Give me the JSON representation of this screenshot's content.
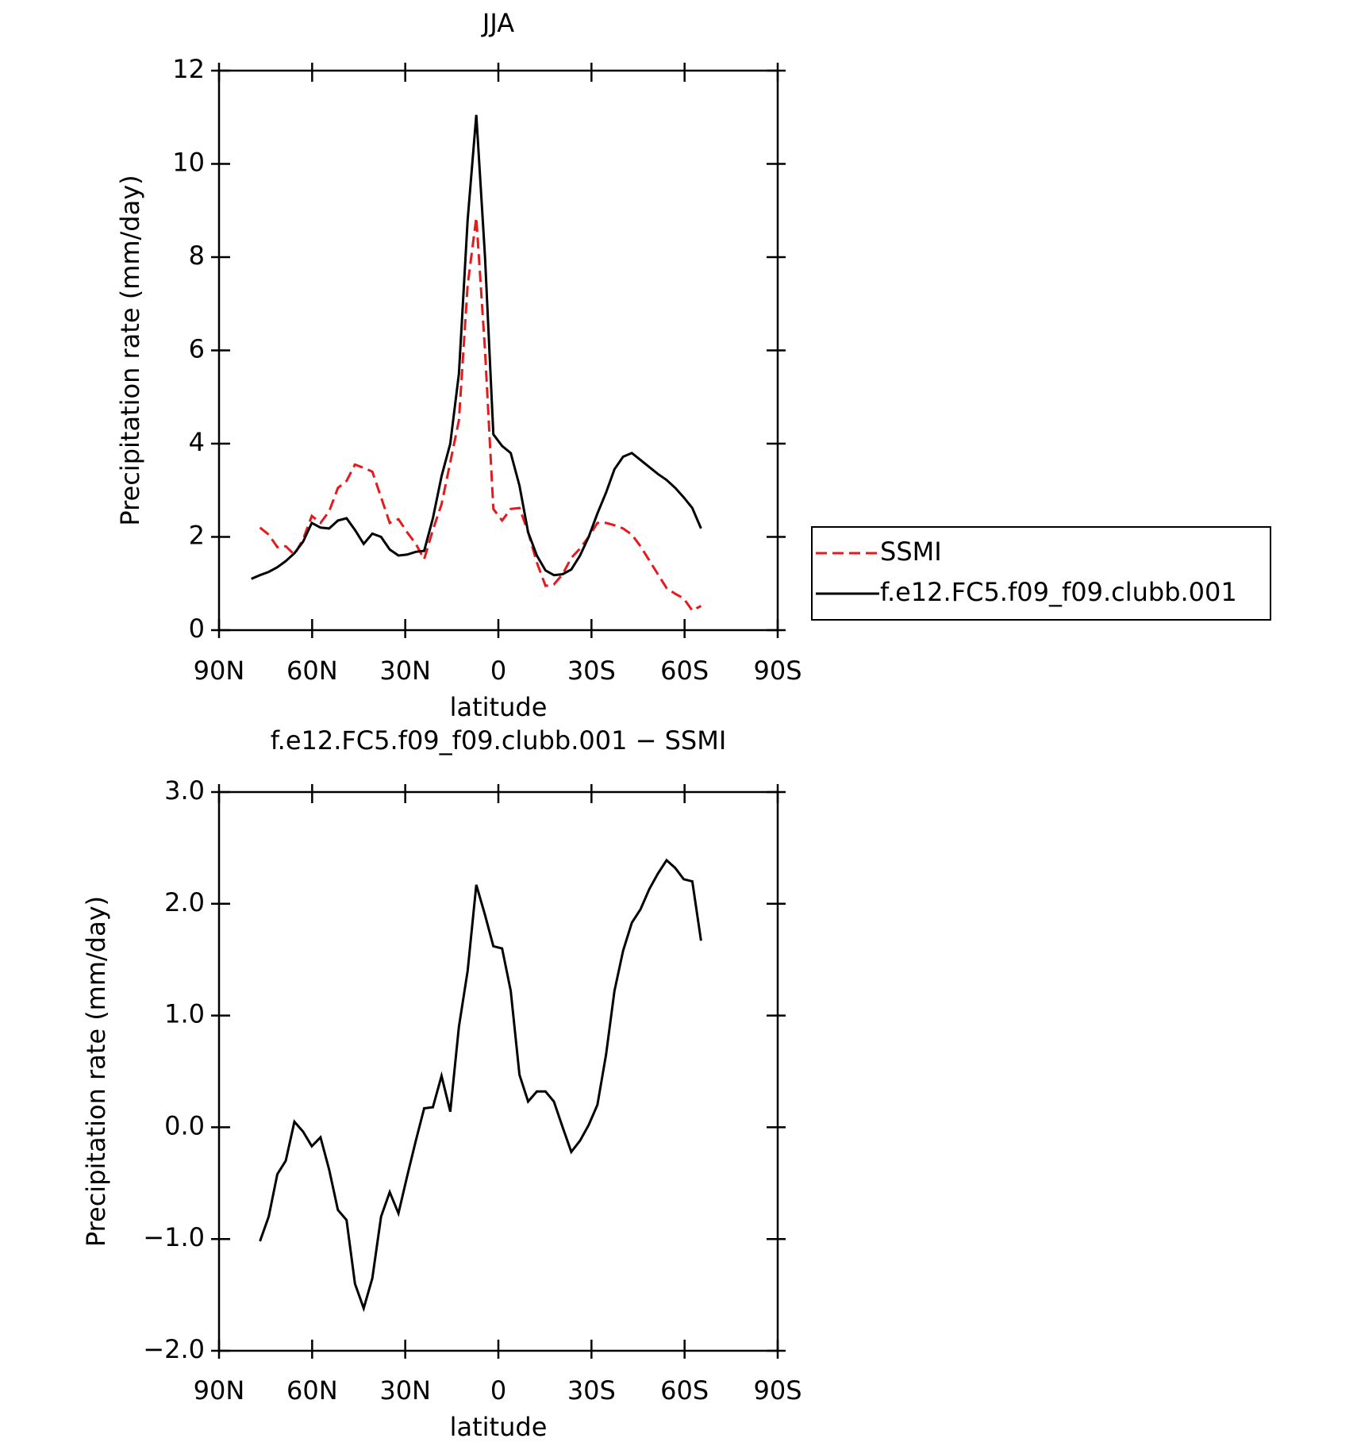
{
  "chart_data": [
    {
      "type": "line",
      "title": "JJA",
      "x_label": "latitude",
      "y_label": "Precipitation rate (mm/day)",
      "x": [
        79.6,
        76.8,
        74.0,
        71.2,
        68.5,
        65.7,
        62.9,
        60.1,
        57.3,
        54.5,
        51.7,
        48.9,
        46.2,
        43.4,
        40.6,
        37.8,
        35.0,
        32.2,
        29.4,
        26.6,
        23.9,
        21.1,
        18.3,
        15.5,
        12.7,
        9.9,
        7.1,
        4.3,
        1.6,
        -1.2,
        -4.0,
        -6.8,
        -9.6,
        -12.4,
        -15.2,
        -17.9,
        -20.7,
        -23.5,
        -26.3,
        -29.1,
        -31.9,
        -34.7,
        -37.4,
        -40.2,
        -43.0,
        -45.8,
        -48.6,
        -51.4,
        -54.2,
        -57.0,
        -59.7,
        -62.5,
        -65.3
      ],
      "series": [
        {
          "name": "SSMI",
          "color": "#e41a1c",
          "dash": true,
          "values": [
            null,
            2.2,
            2.05,
            1.78,
            1.8,
            1.62,
            1.95,
            2.45,
            2.3,
            2.55,
            3.05,
            3.2,
            3.55,
            3.48,
            3.4,
            2.85,
            2.3,
            2.38,
            2.1,
            1.85,
            1.52,
            2.15,
            2.7,
            3.6,
            4.5,
            7.4,
            8.85,
            6.0,
            2.6,
            2.35,
            2.6,
            2.62,
            2.1,
            1.45,
            0.95,
            0.98,
            1.2,
            1.55,
            1.75,
            2.0,
            2.3,
            2.3,
            2.25,
            2.18,
            2.05,
            1.8,
            1.5,
            1.2,
            0.9,
            0.78,
            0.68,
            0.42,
            0.52
          ]
        },
        {
          "name": "f.e12.FC5.f09_f09.clubb.001",
          "color": "#000000",
          "dash": false,
          "values": [
            1.1,
            1.18,
            1.25,
            1.35,
            1.48,
            1.65,
            1.9,
            2.3,
            2.2,
            2.18,
            2.35,
            2.4,
            2.15,
            1.85,
            2.07,
            2.0,
            1.73,
            1.6,
            1.62,
            1.68,
            1.7,
            2.4,
            3.3,
            4.0,
            5.5,
            8.8,
            11.05,
            8.0,
            4.2,
            3.95,
            3.8,
            3.1,
            2.1,
            1.6,
            1.28,
            1.18,
            1.2,
            1.3,
            1.6,
            2.0,
            2.5,
            2.95,
            3.45,
            3.72,
            3.8,
            3.65,
            3.5,
            3.35,
            3.22,
            3.05,
            2.85,
            2.62,
            2.18
          ]
        }
      ],
      "xlim": [
        90,
        -90
      ],
      "xticks": [
        {
          "value": 90,
          "label": "90N"
        },
        {
          "value": 60,
          "label": "60N"
        },
        {
          "value": 30,
          "label": "30N"
        },
        0,
        {
          "value": -30,
          "label": "30S"
        },
        {
          "value": -60,
          "label": "60S"
        },
        {
          "value": -90,
          "label": "90S"
        }
      ],
      "ylim": [
        0,
        12
      ],
      "yticks": [
        0,
        2,
        4,
        6,
        8,
        10,
        12
      ],
      "legend": "right"
    },
    {
      "type": "line",
      "title": "f.e12.FC5.f09_f09.clubb.001 − SSMI",
      "x_label": "latitude",
      "y_label": "Precipitation rate (mm/day)",
      "x": [
        79.6,
        76.8,
        74.0,
        71.2,
        68.5,
        65.7,
        62.9,
        60.1,
        57.3,
        54.5,
        51.7,
        48.9,
        46.2,
        43.4,
        40.6,
        37.8,
        35.0,
        32.2,
        29.4,
        26.6,
        23.9,
        21.1,
        18.3,
        15.5,
        12.7,
        9.9,
        7.1,
        4.3,
        1.6,
        -1.2,
        -4.0,
        -6.8,
        -9.6,
        -12.4,
        -15.2,
        -17.9,
        -20.7,
        -23.5,
        -26.3,
        -29.1,
        -31.9,
        -34.7,
        -37.4,
        -40.2,
        -43.0,
        -45.8,
        -48.6,
        -51.4,
        -54.2,
        -57.0,
        -59.7,
        -62.5,
        -65.3
      ],
      "series": [
        {
          "color": "#000000",
          "dash": false,
          "values": [
            null,
            -1.02,
            -0.8,
            -0.42,
            -0.3,
            0.05,
            -0.04,
            -0.17,
            -0.09,
            -0.38,
            -0.74,
            -0.83,
            -1.4,
            -1.62,
            -1.35,
            -0.8,
            -0.58,
            -0.77,
            -0.44,
            -0.12,
            0.17,
            0.18,
            0.46,
            0.14,
            0.9,
            1.4,
            2.17,
            1.9,
            1.62,
            1.6,
            1.22,
            0.47,
            0.23,
            0.32,
            0.32,
            0.23,
            0.0,
            -0.22,
            -0.12,
            0.02,
            0.2,
            0.65,
            1.22,
            1.58,
            1.83,
            1.95,
            2.13,
            2.27,
            2.39,
            2.32,
            2.22,
            2.2,
            1.67
          ]
        }
      ],
      "xlim": [
        90,
        -90
      ],
      "xticks": [
        {
          "value": 90,
          "label": "90N"
        },
        {
          "value": 60,
          "label": "60N"
        },
        {
          "value": 30,
          "label": "30N"
        },
        0,
        {
          "value": -30,
          "label": "30S"
        },
        {
          "value": -60,
          "label": "60S"
        },
        {
          "value": -90,
          "label": "90S"
        }
      ],
      "ylim": [
        -2,
        3
      ],
      "yticks": [
        {
          "value": -2,
          "label": "−2.0"
        },
        {
          "value": -1,
          "label": "−1.0"
        },
        {
          "value": 0,
          "label": "0.0"
        },
        {
          "value": 1,
          "label": "1.0"
        },
        {
          "value": 2,
          "label": "2.0"
        },
        {
          "value": 3,
          "label": "3.0"
        }
      ]
    }
  ]
}
